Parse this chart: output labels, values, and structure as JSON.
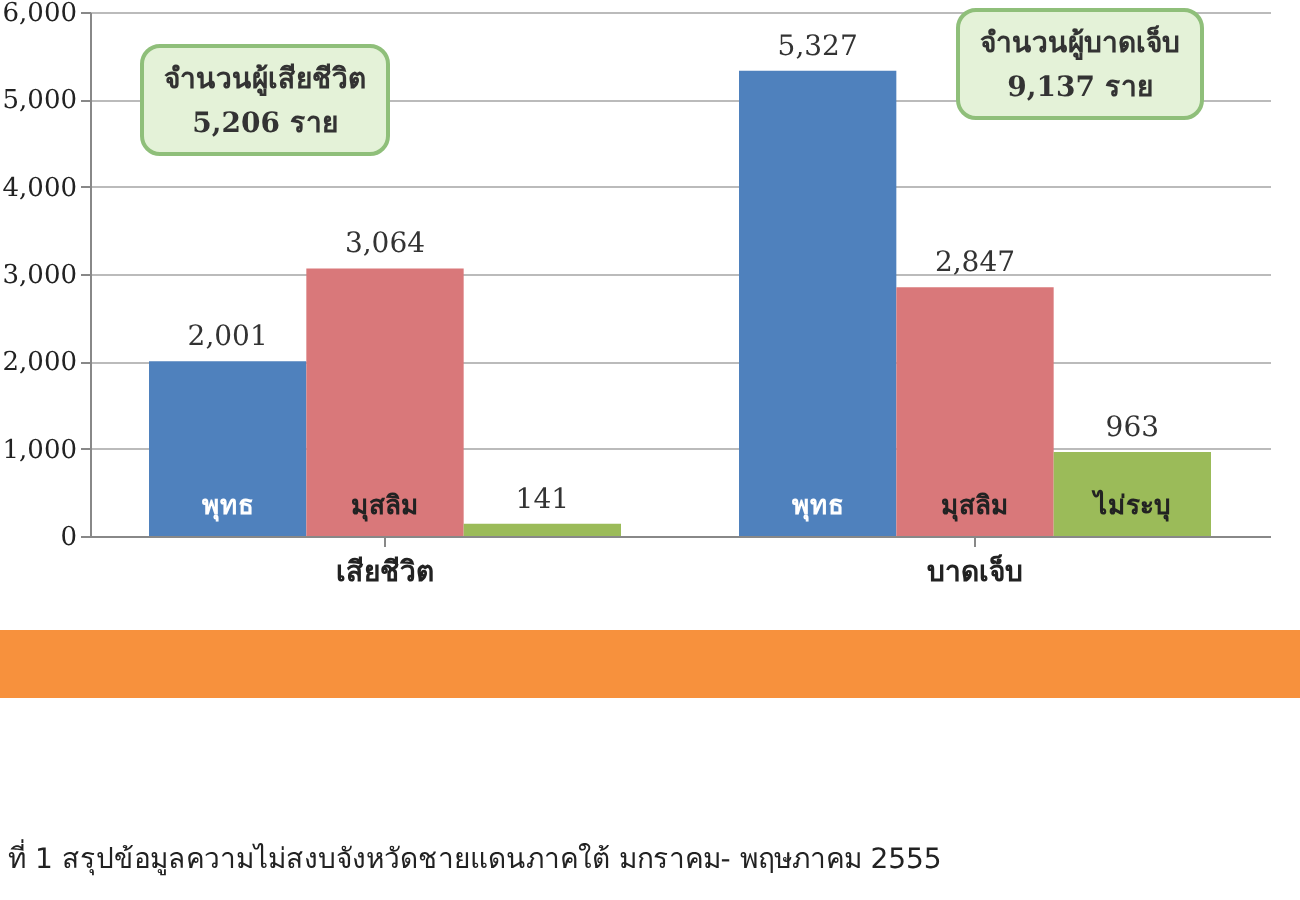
{
  "chart_data": {
    "type": "bar",
    "categories": [
      "เสียชีวิต",
      "บาดเจ็บ"
    ],
    "series": [
      {
        "name": "พุทธ",
        "color": "#4f81bd",
        "values": [
          2001,
          5327
        ],
        "value_labels": [
          "2,001",
          "5,327"
        ]
      },
      {
        "name": "มุสลิม",
        "color": "#d9787a",
        "values": [
          3064,
          2847
        ],
        "value_labels": [
          "3,064",
          "2,847"
        ]
      },
      {
        "name": "ไม่ระบุ",
        "color": "#9bbb59",
        "values": [
          141,
          963
        ],
        "value_labels": [
          "141",
          "963"
        ]
      }
    ],
    "ylim": [
      0,
      6000
    ],
    "yticks": [
      0,
      {
        "value": 1000,
        "label": "1,000"
      },
      {
        "value": 2000,
        "label": "2,000"
      },
      {
        "value": 3000,
        "label": "3,000"
      },
      {
        "value": 4000,
        "label": "4,000"
      },
      {
        "value": 5000,
        "label": "5,000"
      },
      {
        "value": 6000,
        "label": "6,000"
      }
    ],
    "grid": "y",
    "legend": false,
    "annotations": [
      "จำนวนผู้เสียชีวิต\n5,206 ราย",
      "จำนวนผู้บาดเจ็บ\n9,137 ราย",
      "ที่ 1 สรุปข้อมูลความไม่สงบจังหวัดชายแดนภาคใต้ มกราคม- พฤษภาคม 2555"
    ]
  }
}
